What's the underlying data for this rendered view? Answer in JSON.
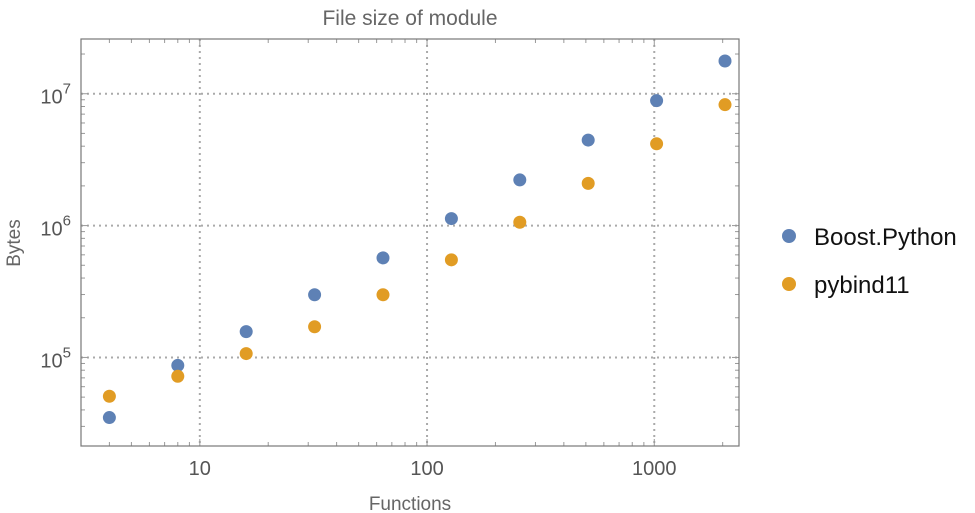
{
  "chart_data": {
    "type": "scatter",
    "title": "File size of module",
    "xlabel": "Functions",
    "ylabel": "Bytes",
    "xscale": "log",
    "yscale": "log",
    "xlim": [
      3.0,
      2360
    ],
    "ylim": [
      21300,
      26000000
    ],
    "grid": true,
    "legend_position": "right",
    "x_ticks": [
      {
        "value": 10,
        "label": "10"
      },
      {
        "value": 100,
        "label": "100"
      },
      {
        "value": 1000,
        "label": "1000"
      }
    ],
    "y_ticks": [
      {
        "value": 100000,
        "base": "10",
        "exp": "5"
      },
      {
        "value": 1000000,
        "base": "10",
        "exp": "6"
      },
      {
        "value": 10000000,
        "base": "10",
        "exp": "7"
      }
    ],
    "x": [
      4,
      8,
      16,
      32,
      64,
      128,
      256,
      512,
      1024,
      2048
    ],
    "series": [
      {
        "name": "Boost.Python",
        "color": "#5E81B5",
        "values": [
          35000,
          87000,
          157000,
          299000,
          569000,
          1130000,
          2220000,
          4450000,
          8860000,
          17700000
        ]
      },
      {
        "name": "pybind11",
        "color": "#E19C24",
        "values": [
          50800,
          72000,
          107000,
          171000,
          299000,
          550000,
          1060000,
          2090000,
          4170000,
          8260000
        ]
      }
    ]
  }
}
